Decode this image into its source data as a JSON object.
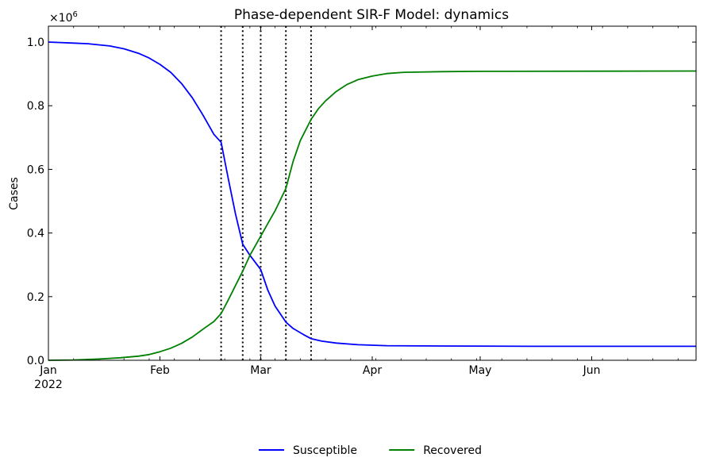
{
  "chart_data": {
    "type": "line",
    "title": "Phase-dependent SIR-F Model: dynamics",
    "xlabel": "",
    "ylabel": "Cases",
    "y_multiplier": "×10",
    "y_multiplier_exponent": "6",
    "ylim": [
      0,
      1.05
    ],
    "yticks": [
      0.0,
      0.2,
      0.4,
      0.6,
      0.8,
      1.0
    ],
    "ytick_labels": [
      "0.0",
      "0.2",
      "0.4",
      "0.6",
      "0.8",
      "1.0"
    ],
    "xlim": [
      "2022-01-01",
      "2022-06-30"
    ],
    "xticks": [
      {
        "date": "2022-01-01",
        "label": "Jan",
        "sublabel": "2022"
      },
      {
        "date": "2022-02-01",
        "label": "Feb",
        "sublabel": ""
      },
      {
        "date": "2022-03-01",
        "label": "Mar",
        "sublabel": ""
      },
      {
        "date": "2022-04-01",
        "label": "Apr",
        "sublabel": ""
      },
      {
        "date": "2022-05-01",
        "label": "May",
        "sublabel": ""
      },
      {
        "date": "2022-06-01",
        "label": "Jun",
        "sublabel": ""
      }
    ],
    "vlines": [
      "2022-02-18",
      "2022-02-24",
      "2022-03-01",
      "2022-03-08",
      "2022-03-15"
    ],
    "grid": false,
    "legend_position": "bottom-center",
    "series": [
      {
        "name": "Susceptible",
        "color": "#0000ff",
        "points": [
          [
            "2022-01-01",
            1.0
          ],
          [
            "2022-01-08",
            0.997
          ],
          [
            "2022-01-12",
            0.995
          ],
          [
            "2022-01-18",
            0.988
          ],
          [
            "2022-01-22",
            0.979
          ],
          [
            "2022-01-26",
            0.965
          ],
          [
            "2022-01-29",
            0.95
          ],
          [
            "2022-02-01",
            0.93
          ],
          [
            "2022-02-04",
            0.905
          ],
          [
            "2022-02-07",
            0.87
          ],
          [
            "2022-02-10",
            0.825
          ],
          [
            "2022-02-13",
            0.77
          ],
          [
            "2022-02-16",
            0.71
          ],
          [
            "2022-02-18",
            0.685
          ],
          [
            "2022-02-20",
            0.57
          ],
          [
            "2022-02-22",
            0.46
          ],
          [
            "2022-02-24",
            0.365
          ],
          [
            "2022-02-26",
            0.33
          ],
          [
            "2022-03-01",
            0.285
          ],
          [
            "2022-03-03",
            0.22
          ],
          [
            "2022-03-05",
            0.17
          ],
          [
            "2022-03-08",
            0.12
          ],
          [
            "2022-03-10",
            0.1
          ],
          [
            "2022-03-13",
            0.08
          ],
          [
            "2022-03-15",
            0.068
          ],
          [
            "2022-03-18",
            0.06
          ],
          [
            "2022-03-22",
            0.054
          ],
          [
            "2022-03-28",
            0.049
          ],
          [
            "2022-04-05",
            0.046
          ],
          [
            "2022-04-20",
            0.045
          ],
          [
            "2022-05-15",
            0.044
          ],
          [
            "2022-06-30",
            0.044
          ]
        ]
      },
      {
        "name": "Recovered",
        "color": "#008000",
        "points": [
          [
            "2022-01-01",
            0.0
          ],
          [
            "2022-01-08",
            0.001
          ],
          [
            "2022-01-15",
            0.004
          ],
          [
            "2022-01-21",
            0.008
          ],
          [
            "2022-01-26",
            0.013
          ],
          [
            "2022-01-29",
            0.018
          ],
          [
            "2022-02-01",
            0.027
          ],
          [
            "2022-02-04",
            0.038
          ],
          [
            "2022-02-07",
            0.053
          ],
          [
            "2022-02-10",
            0.073
          ],
          [
            "2022-02-13",
            0.098
          ],
          [
            "2022-02-16",
            0.122
          ],
          [
            "2022-02-18",
            0.147
          ],
          [
            "2022-02-20",
            0.19
          ],
          [
            "2022-02-22",
            0.235
          ],
          [
            "2022-02-24",
            0.28
          ],
          [
            "2022-02-26",
            0.33
          ],
          [
            "2022-03-01",
            0.39
          ],
          [
            "2022-03-03",
            0.43
          ],
          [
            "2022-03-05",
            0.47
          ],
          [
            "2022-03-08",
            0.54
          ],
          [
            "2022-03-10",
            0.625
          ],
          [
            "2022-03-12",
            0.69
          ],
          [
            "2022-03-15",
            0.757
          ],
          [
            "2022-03-17",
            0.79
          ],
          [
            "2022-03-19",
            0.815
          ],
          [
            "2022-03-22",
            0.845
          ],
          [
            "2022-03-25",
            0.867
          ],
          [
            "2022-03-28",
            0.882
          ],
          [
            "2022-04-01",
            0.893
          ],
          [
            "2022-04-05",
            0.901
          ],
          [
            "2022-04-10",
            0.905
          ],
          [
            "2022-04-20",
            0.907
          ],
          [
            "2022-05-01",
            0.908
          ],
          [
            "2022-06-30",
            0.909
          ]
        ]
      }
    ]
  }
}
